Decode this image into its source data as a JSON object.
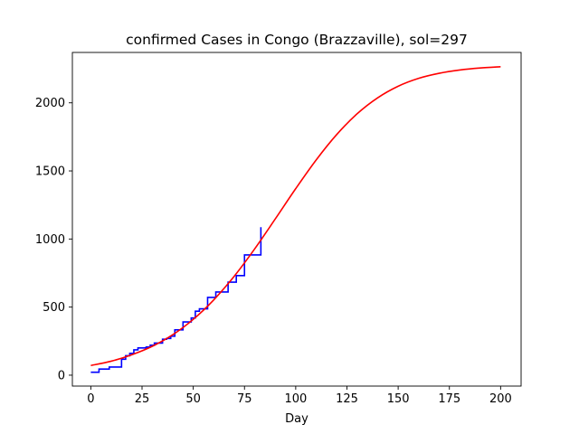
{
  "chart_data": {
    "type": "line",
    "title": "confirmed Cases in Congo (Brazzaville), sol=297",
    "xlabel": "Day",
    "ylabel": "",
    "xlim": [
      -9,
      210
    ],
    "ylim": [
      -80,
      2370
    ],
    "xticks": [
      0,
      25,
      50,
      75,
      100,
      125,
      150,
      175,
      200
    ],
    "yticks": [
      0,
      500,
      1000,
      1500,
      2000
    ],
    "grid": false,
    "legend": "none",
    "series": [
      {
        "color": "#0000ff",
        "style": "steps-post",
        "x": [
          0,
          2,
          4,
          7,
          9,
          11,
          13,
          15,
          17,
          19,
          21,
          23,
          25,
          27,
          29,
          31,
          33,
          35,
          37,
          39,
          41,
          43,
          45,
          47,
          49,
          51,
          53,
          55,
          57,
          59,
          61,
          63,
          65,
          67,
          69,
          71,
          73,
          75,
          77,
          79,
          81,
          83
        ],
        "y": [
          22,
          22,
          45,
          45,
          60,
          60,
          60,
          117,
          143,
          160,
          186,
          200,
          200,
          207,
          220,
          236,
          236,
          264,
          270,
          286,
          333,
          333,
          391,
          391,
          420,
          470,
          487,
          487,
          571,
          571,
          611,
          611,
          611,
          683,
          683,
          731,
          731,
          883,
          883,
          883,
          883,
          1087
        ]
      },
      {
        "color": "#ff0000",
        "style": "smooth",
        "x": [
          0,
          10,
          20,
          30,
          40,
          50,
          60,
          70,
          80,
          90,
          100,
          110,
          120,
          130,
          140,
          150,
          160,
          170,
          180,
          190,
          200
        ],
        "y": [
          71,
          103,
          150,
          212,
          297,
          410,
          553,
          727,
          928,
          1147,
          1370,
          1581,
          1767,
          1920,
          2037,
          2122,
          2180,
          2217,
          2241,
          2256,
          2265
        ]
      }
    ]
  }
}
